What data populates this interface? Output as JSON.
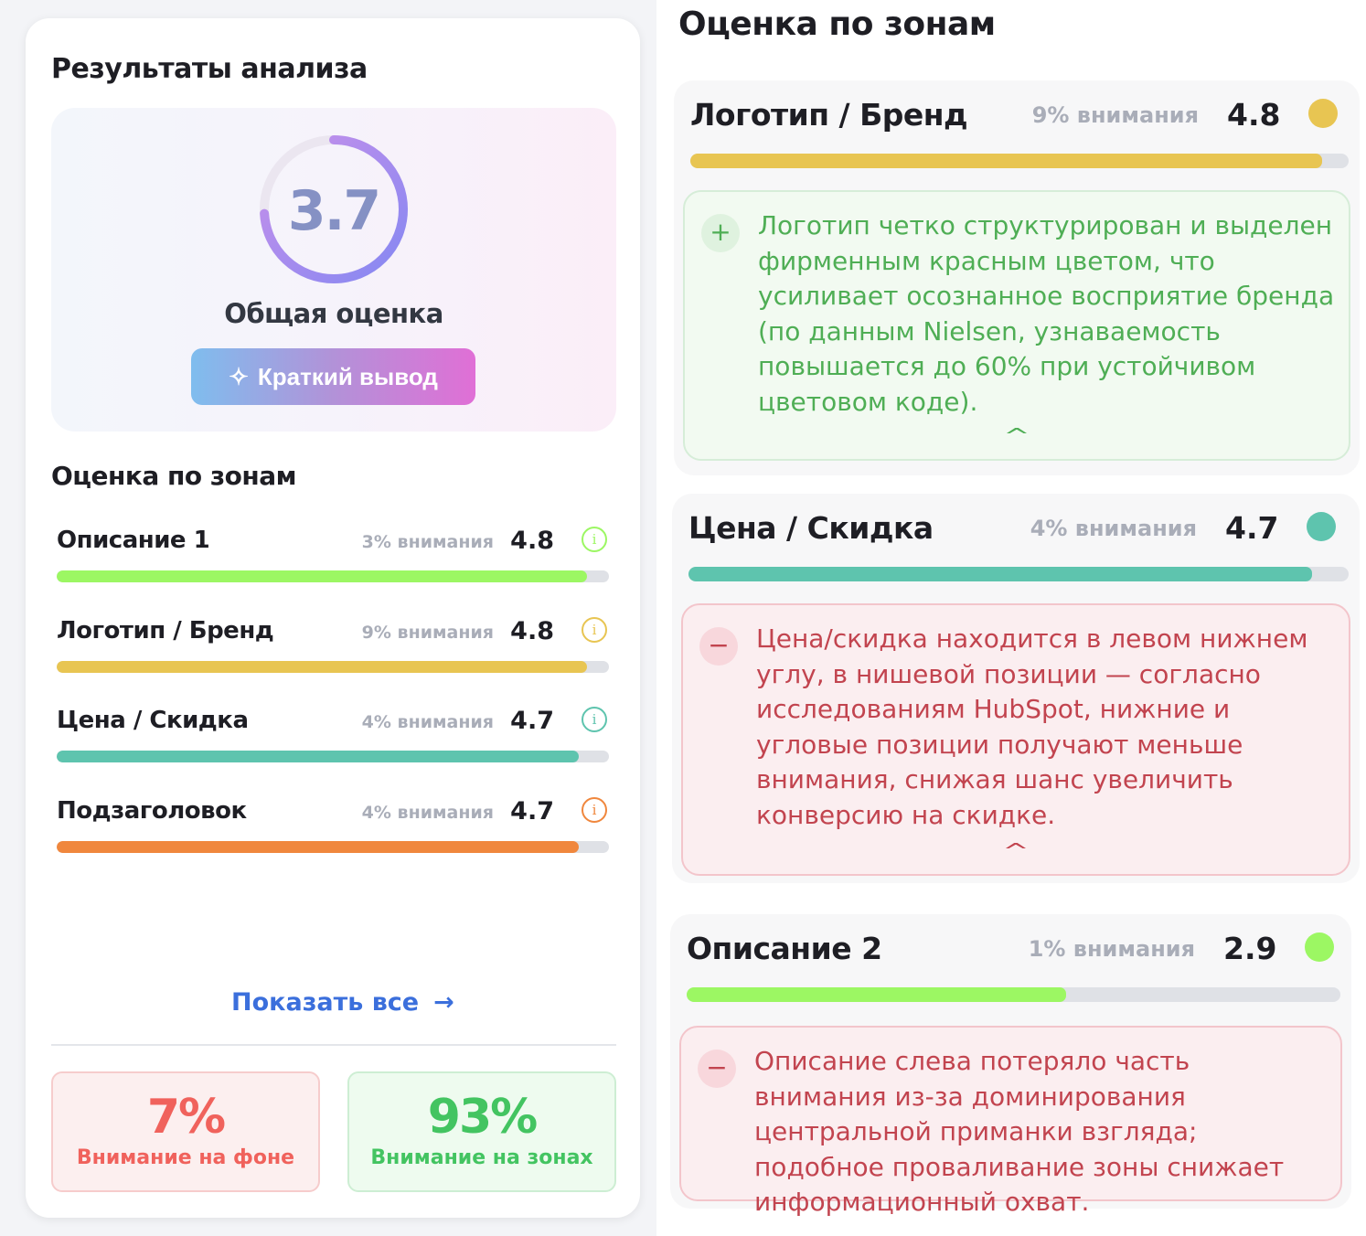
{
  "left": {
    "title": "Результаты анализа",
    "overall": {
      "score": "3.7",
      "score_fraction": 0.74,
      "label": "Общая оценка",
      "button": "Краткий вывод"
    },
    "zones_title": "Оценка по зонам",
    "zones": [
      {
        "name": "Описание 1",
        "attention": "3% внимания",
        "score": "4.8",
        "fill": 0.96,
        "color": "#9cf763"
      },
      {
        "name": "Логотип / Бренд",
        "attention": "9% внимания",
        "score": "4.8",
        "fill": 0.96,
        "color": "#e8c552"
      },
      {
        "name": "Цена / Скидка",
        "attention": "4% внимания",
        "score": "4.7",
        "fill": 0.945,
        "color": "#5ec4ae"
      },
      {
        "name": "Подзаголовок",
        "attention": "4% внимания",
        "score": "4.7",
        "fill": 0.945,
        "color": "#f0873d"
      }
    ],
    "show_all": "Показать все",
    "stats": [
      {
        "value": "7%",
        "label": "Внимание на фоне"
      },
      {
        "value": "93%",
        "label": "Внимание на зонах"
      }
    ]
  },
  "right": {
    "title": "Оценка по зонам",
    "zones": [
      {
        "name": "Логотип / Бренд",
        "attention": "9% внимания",
        "score": "4.8",
        "fill": 0.96,
        "color": "#e8c552",
        "sign": "+",
        "type": "positive",
        "text": "Логотип четко структурирован и выделен фирменным красным цветом, что усиливает осознанное восприятие бренда (по данным Nielsen, узнаваемость повышается до 60% при устойчивом цветовом коде)."
      },
      {
        "name": "Цена / Скидка",
        "attention": "4% внимания",
        "score": "4.7",
        "fill": 0.945,
        "color": "#5ec4ae",
        "sign": "−",
        "type": "negative",
        "text": "Цена/скидка находится в левом нижнем углу, в нишевой позиции — согласно исследованиям HubSpot, нижние и угловые позиции получают меньше внимания, снижая шанс увеличить конверсию на скидке."
      },
      {
        "name": "Описание 2",
        "attention": "1% внимания",
        "score": "2.9",
        "fill": 0.58,
        "color": "#9cf763",
        "sign": "−",
        "type": "negative",
        "text": "Описание слева потеряло часть внимания из-за доминирования центральной приманки взгляда; подобное проваливание зоны снижает информационный охват."
      }
    ]
  }
}
